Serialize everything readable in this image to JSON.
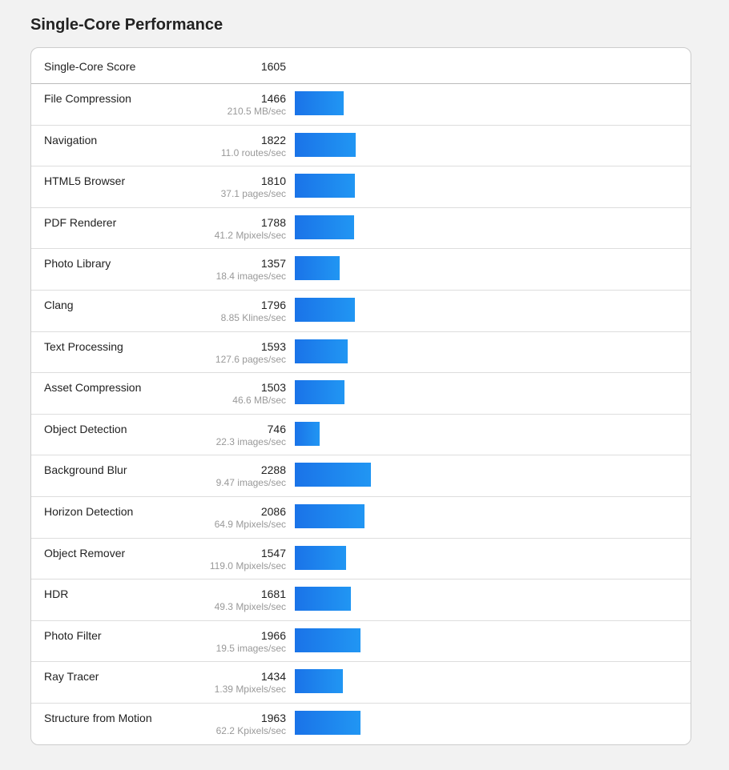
{
  "title": "Single-Core Performance",
  "summary": {
    "label": "Single-Core Score",
    "score": 1605
  },
  "rows": [
    {
      "name": "File Compression",
      "score": 1466,
      "rate": "210.5 MB/sec"
    },
    {
      "name": "Navigation",
      "score": 1822,
      "rate": "11.0 routes/sec"
    },
    {
      "name": "HTML5 Browser",
      "score": 1810,
      "rate": "37.1 pages/sec"
    },
    {
      "name": "PDF Renderer",
      "score": 1788,
      "rate": "41.2 Mpixels/sec"
    },
    {
      "name": "Photo Library",
      "score": 1357,
      "rate": "18.4 images/sec"
    },
    {
      "name": "Clang",
      "score": 1796,
      "rate": "8.85 Klines/sec"
    },
    {
      "name": "Text Processing",
      "score": 1593,
      "rate": "127.6 pages/sec"
    },
    {
      "name": "Asset Compression",
      "score": 1503,
      "rate": "46.6 MB/sec"
    },
    {
      "name": "Object Detection",
      "score": 746,
      "rate": "22.3 images/sec"
    },
    {
      "name": "Background Blur",
      "score": 2288,
      "rate": "9.47 images/sec"
    },
    {
      "name": "Horizon Detection",
      "score": 2086,
      "rate": "64.9 Mpixels/sec"
    },
    {
      "name": "Object Remover",
      "score": 1547,
      "rate": "119.0 Mpixels/sec"
    },
    {
      "name": "HDR",
      "score": 1681,
      "rate": "49.3 Mpixels/sec"
    },
    {
      "name": "Photo Filter",
      "score": 1966,
      "rate": "19.5 images/sec"
    },
    {
      "name": "Ray Tracer",
      "score": 1434,
      "rate": "1.39 Mpixels/sec"
    },
    {
      "name": "Structure from Motion",
      "score": 1963,
      "rate": "62.2 Kpixels/sec"
    }
  ]
}
